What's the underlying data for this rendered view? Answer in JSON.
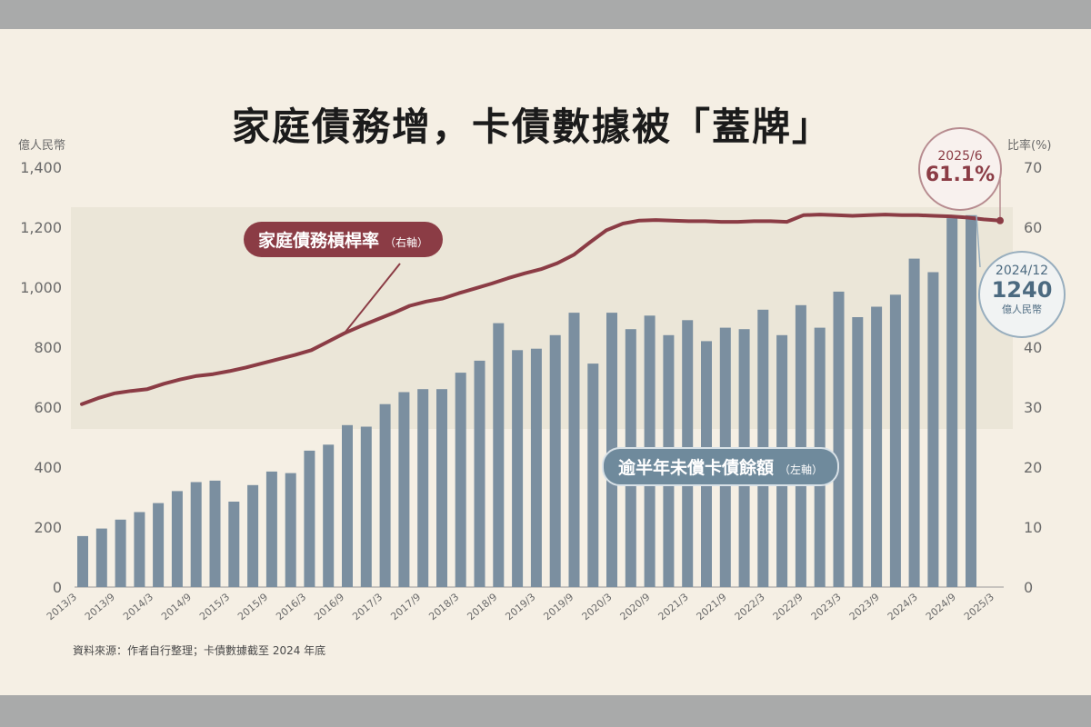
{
  "chart_data": {
    "type": "bar+line",
    "title": "家庭債務增，卡債數據被「蓋牌」",
    "left_axis": {
      "unit_label": "億人民幣",
      "ticks": [
        "0",
        "200",
        "400",
        "600",
        "800",
        "1,000",
        "1,200",
        "1,400"
      ],
      "ylim": [
        0,
        1400
      ]
    },
    "right_axis": {
      "unit_label": "比率(%)",
      "ticks": [
        "0",
        "10",
        "20",
        "30",
        "40",
        "50",
        "60",
        "70"
      ],
      "ylim": [
        0,
        70
      ]
    },
    "x_labels": [
      "2013/3",
      "2013/9",
      "2014/3",
      "2014/9",
      "2015/3",
      "2015/9",
      "2016/3",
      "2016/9",
      "2017/3",
      "2017/9",
      "2018/3",
      "2018/9",
      "2019/3",
      "2019/9",
      "2020/3",
      "2020/9",
      "2021/3",
      "2021/9",
      "2022/3",
      "2022/9",
      "2023/3",
      "2023/9",
      "2024/3",
      "2024/9",
      "2025/3"
    ],
    "bar_series": {
      "name": "逾半年未償卡債餘額",
      "axis_note": "（左軸）",
      "color": "#7b8fa0",
      "values": [
        170,
        195,
        225,
        250,
        280,
        320,
        350,
        355,
        285,
        340,
        385,
        380,
        455,
        475,
        540,
        535,
        610,
        650,
        660,
        660,
        715,
        755,
        880,
        790,
        795,
        840,
        915,
        745,
        915,
        860,
        905,
        840,
        890,
        820,
        865,
        860,
        925,
        840,
        940,
        865,
        985,
        900,
        935,
        975,
        1095,
        1050,
        1230,
        1240
      ]
    },
    "line_series": {
      "name": "家庭債務槓桿率",
      "axis_note": "（右軸）",
      "color": "#8b3c45",
      "values": [
        30.5,
        31.5,
        32.3,
        32.7,
        33.0,
        33.9,
        34.6,
        35.2,
        35.5,
        36.0,
        36.6,
        37.3,
        38.0,
        38.7,
        39.5,
        40.9,
        42.3,
        43.5,
        44.6,
        45.7,
        46.9,
        47.6,
        48.1,
        49.0,
        49.8,
        50.6,
        51.5,
        52.3,
        53.0,
        54.0,
        55.4,
        57.5,
        59.5,
        60.6,
        61.1,
        61.2,
        61.1,
        61.0,
        61.0,
        60.9,
        60.9,
        61.0,
        61.0,
        60.9,
        62.0,
        62.1,
        62.0,
        61.9,
        62.0,
        62.1,
        62.0,
        62.0,
        61.9,
        61.8,
        61.6,
        61.3,
        61.1
      ]
    },
    "annotations": [
      {
        "id": "ratio_end",
        "date": "2025/6",
        "value": "61.1%"
      },
      {
        "id": "debt_end",
        "date": "2024/12",
        "value": "1240",
        "unit": "億人民幣"
      }
    ],
    "grid": false,
    "legend": "inline labels"
  },
  "source_note": "資料來源：作者自行整理；卡債數據截至 2024 年底",
  "colors": {
    "background": "#f5efe4",
    "band": "#ebe6d8",
    "bar": "#7b8fa0",
    "line": "#8b3c45",
    "axis_text": "#6a6a6a"
  }
}
